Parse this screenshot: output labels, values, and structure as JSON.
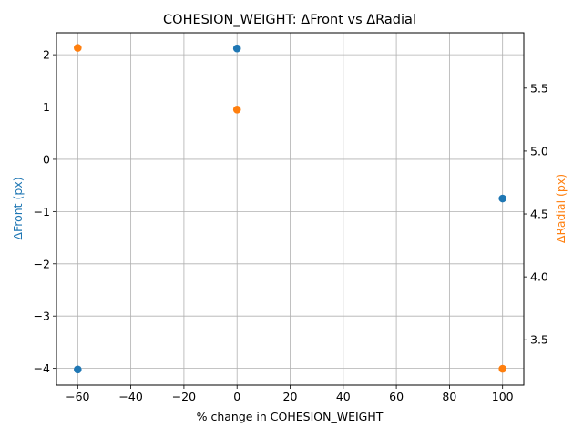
{
  "chart_data": {
    "type": "scatter",
    "title": "COHESION_WEIGHT: ΔFront vs ΔRadial",
    "xlabel": "% change in COHESION_WEIGHT",
    "ylabel_left": "ΔFront (px)",
    "ylabel_right": "ΔRadial (px)",
    "grid": true,
    "xlim": [
      -68,
      108
    ],
    "ylim_left": [
      -4.32,
      2.42
    ],
    "ylim_right": [
      3.14,
      5.94
    ],
    "x_ticks": [
      -60,
      -40,
      -20,
      0,
      20,
      40,
      60,
      80,
      100
    ],
    "y_left_ticks": [
      -4,
      -3,
      -2,
      -1,
      0,
      1,
      2
    ],
    "y_right_ticks": [
      3.5,
      4.0,
      4.5,
      5.0,
      5.5
    ],
    "series": [
      {
        "axis": "left",
        "color": "#1f77b4",
        "x": [
          -60,
          0,
          100
        ],
        "y": [
          -4.02,
          2.12,
          -0.75
        ]
      },
      {
        "axis": "right",
        "color": "#ff7f0e",
        "x": [
          -60,
          0,
          100
        ],
        "y": [
          5.82,
          5.33,
          3.27
        ]
      }
    ],
    "colors": {
      "left_axis_label": "#1f77b4",
      "right_axis_label": "#ff7f0e",
      "grid": "#b0b0b0",
      "spine": "#000000"
    }
  }
}
